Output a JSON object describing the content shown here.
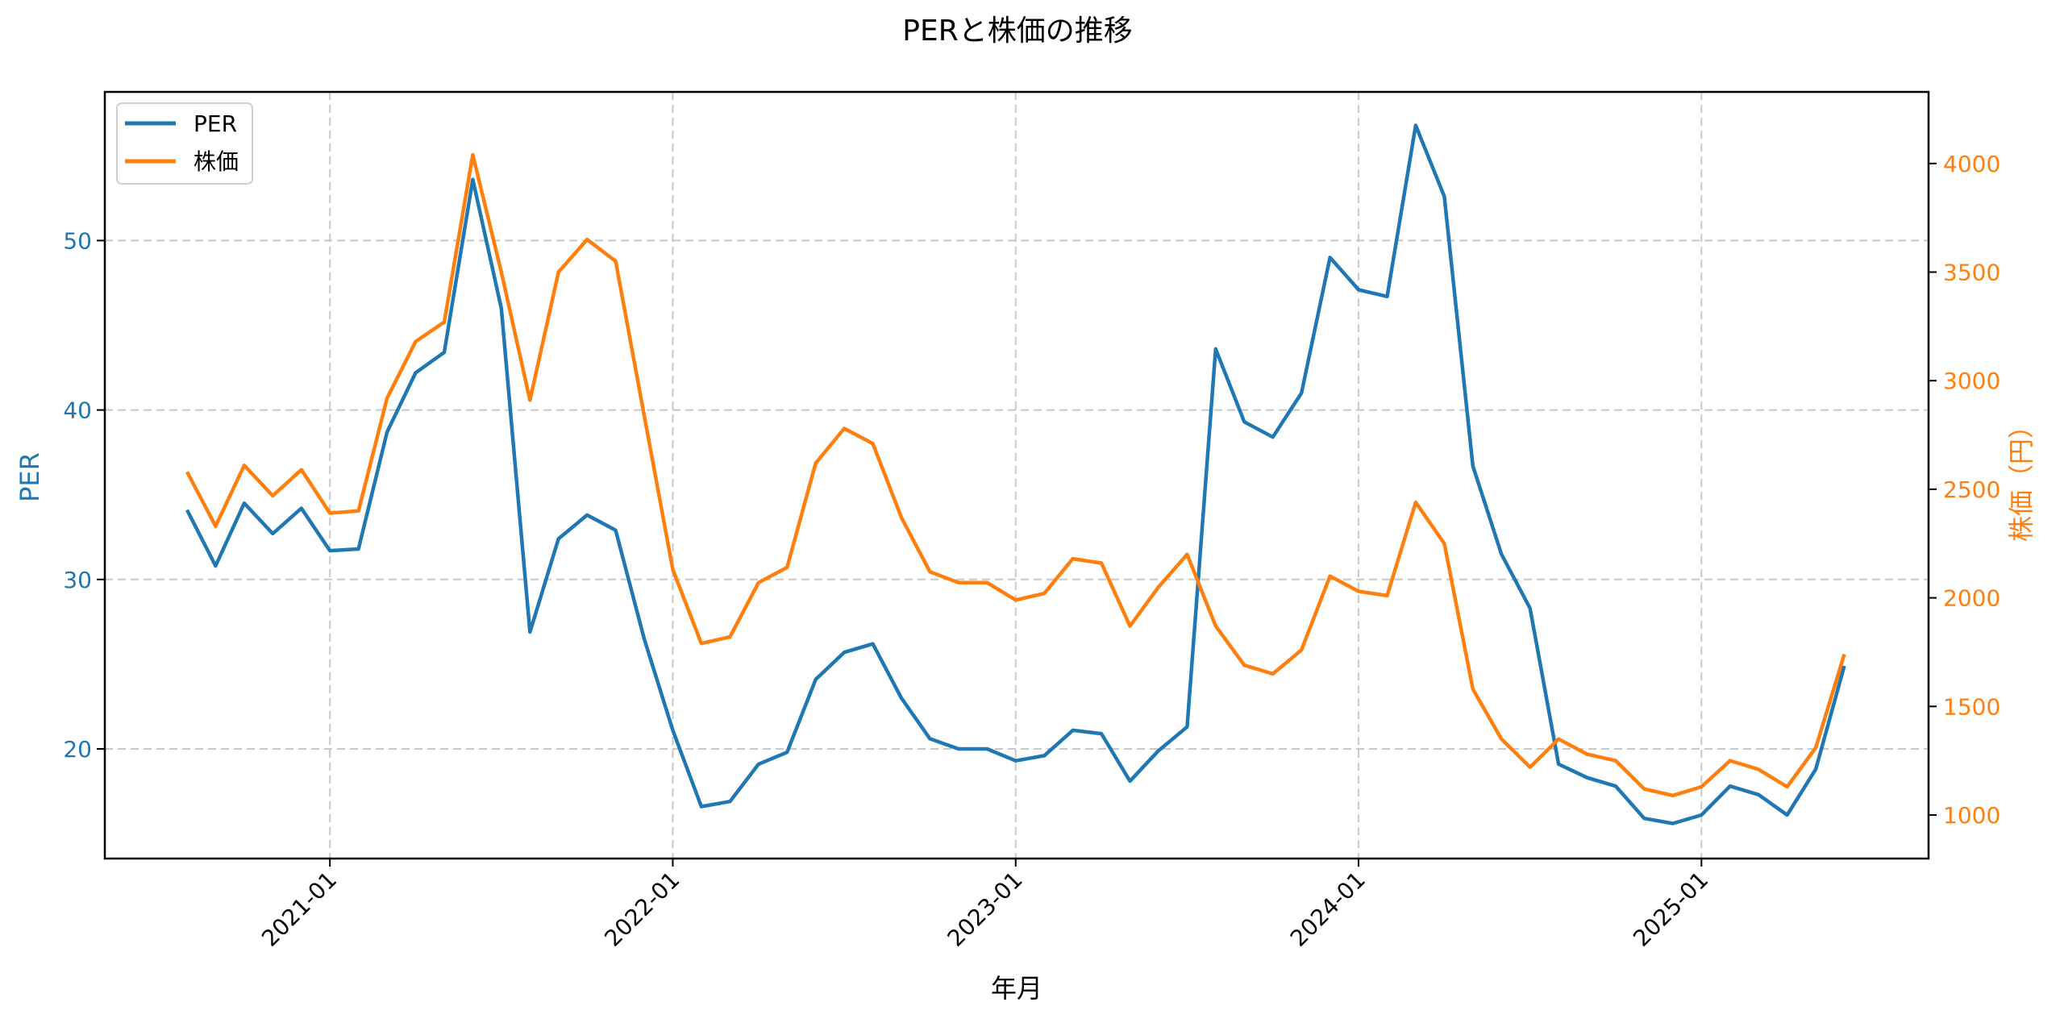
{
  "chart_data": {
    "type": "line",
    "title": "PERと株価の推移",
    "xlabel": "年月",
    "ylabel": "PER",
    "ylabel_right": "株価（円）",
    "x_ticks": [
      "2021-01",
      "2022-01",
      "2023-01",
      "2024-01",
      "2025-01"
    ],
    "y_ticks_left": [
      20,
      30,
      40,
      50
    ],
    "y_ticks_right": [
      1000,
      1500,
      2000,
      2500,
      3000,
      3500,
      4000
    ],
    "ylim_left": [
      13.4,
      58.8
    ],
    "ylim_right": [
      787,
      4330
    ],
    "grid": true,
    "legend_position": "upper left",
    "x": [
      "2020-08",
      "2020-09",
      "2020-10",
      "2020-11",
      "2020-12",
      "2021-01",
      "2021-02",
      "2021-03",
      "2021-04",
      "2021-05",
      "2021-06",
      "2021-07",
      "2021-08",
      "2021-09",
      "2021-10",
      "2021-11",
      "2021-12",
      "2022-01",
      "2022-02",
      "2022-03",
      "2022-04",
      "2022-05",
      "2022-06",
      "2022-07",
      "2022-08",
      "2022-09",
      "2022-10",
      "2022-11",
      "2022-12",
      "2023-01",
      "2023-02",
      "2023-03",
      "2023-04",
      "2023-05",
      "2023-06",
      "2023-07",
      "2023-08",
      "2023-09",
      "2023-10",
      "2023-11",
      "2023-12",
      "2024-01",
      "2024-02",
      "2024-03",
      "2024-04",
      "2024-05",
      "2024-06",
      "2024-07",
      "2024-08",
      "2024-09",
      "2024-10",
      "2024-11",
      "2024-12",
      "2025-01",
      "2025-02",
      "2025-03",
      "2025-04",
      "2025-05",
      "2025-06"
    ],
    "series": [
      {
        "name": "PER",
        "axis": "left",
        "color": "#1f77b4",
        "values": [
          34.1,
          30.8,
          34.5,
          32.7,
          34.2,
          31.7,
          31.8,
          38.7,
          42.2,
          43.4,
          53.6,
          46.0,
          26.9,
          32.4,
          33.8,
          32.9,
          26.5,
          21.1,
          16.6,
          16.9,
          19.1,
          19.8,
          24.1,
          25.7,
          26.2,
          23.0,
          20.6,
          20.0,
          20.0,
          19.3,
          19.6,
          21.1,
          20.9,
          18.1,
          19.9,
          21.3,
          43.6,
          39.3,
          38.4,
          41.0,
          49.0,
          47.1,
          46.7,
          56.8,
          52.6,
          36.7,
          31.5,
          28.3,
          19.1,
          18.3,
          17.8,
          15.9,
          15.6,
          16.1,
          17.8,
          17.3,
          16.1,
          18.8,
          24.9
        ]
      },
      {
        "name": "株価",
        "axis": "right",
        "color": "#ff7f0e",
        "values": [
          2580,
          2330,
          2610,
          2470,
          2590,
          2390,
          2400,
          2920,
          3180,
          3270,
          4040,
          3500,
          2910,
          3500,
          3650,
          3550,
          2840,
          2130,
          1790,
          1820,
          2070,
          2140,
          2620,
          2780,
          2710,
          2370,
          2120,
          2070,
          2070,
          1990,
          2020,
          2180,
          2160,
          1870,
          2050,
          2200,
          1870,
          1690,
          1650,
          1760,
          2100,
          2030,
          2010,
          2440,
          2250,
          1580,
          1350,
          1220,
          1350,
          1280,
          1250,
          1120,
          1090,
          1130,
          1250,
          1210,
          1130,
          1310,
          1740
        ]
      }
    ]
  },
  "legend": {
    "items": [
      {
        "label": "PER",
        "color": "#1f77b4"
      },
      {
        "label": "株価",
        "color": "#ff7f0e"
      }
    ]
  }
}
